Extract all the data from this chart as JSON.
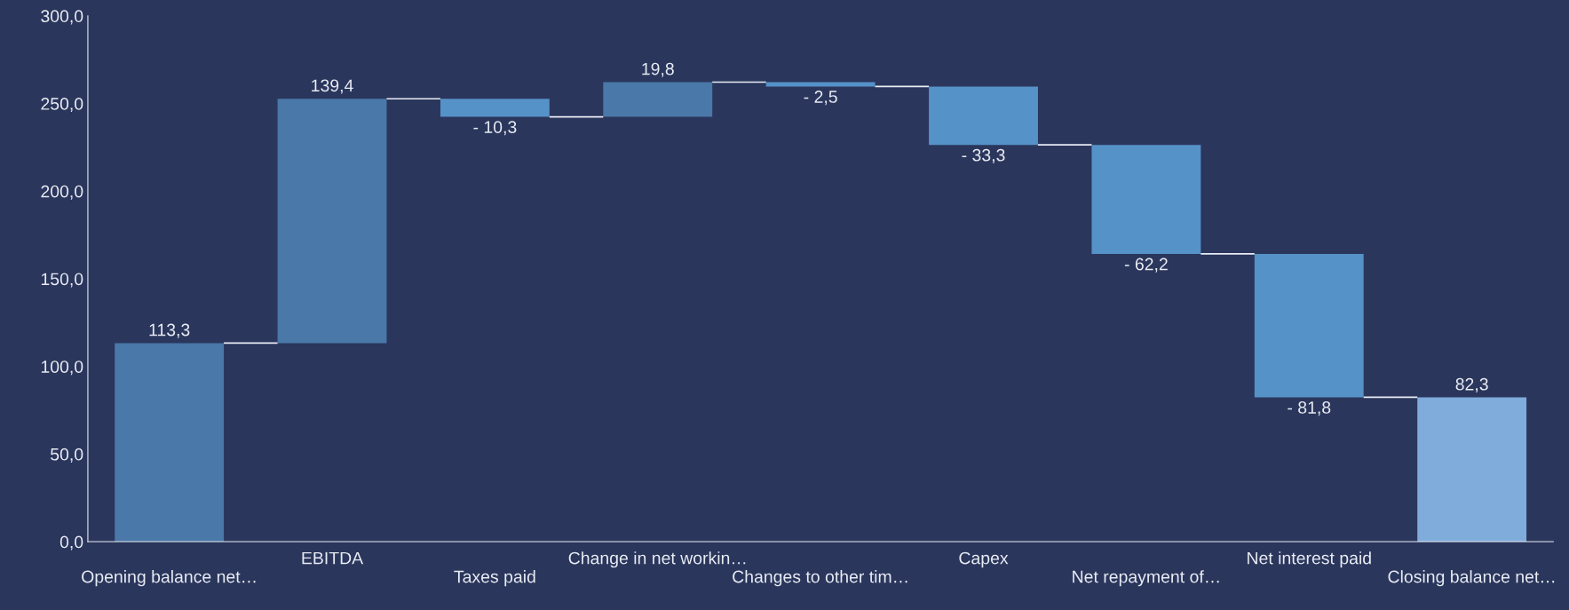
{
  "chart_data": {
    "type": "bar",
    "categories": [
      "Opening balance net…",
      "EBITDA",
      "Taxes paid",
      "Change in net workin…",
      "Changes to other tim…",
      "Capex",
      "Net repayment of…",
      "Net interest paid",
      "Closing balance net…"
    ],
    "values": [
      113.3,
      139.4,
      -10.3,
      19.8,
      -2.5,
      -33.3,
      -62.2,
      -81.8,
      82.3
    ],
    "base": [
      0,
      113.3,
      252.7,
      242.4,
      262.2,
      259.7,
      226.4,
      164.2,
      0
    ],
    "colors": [
      "#4a78a8",
      "#4a78a8",
      "#5592c8",
      "#4a78a8",
      "#5592c8",
      "#5592c8",
      "#5592c8",
      "#5592c8",
      "#80acdb"
    ],
    "value_labels": [
      "113,3",
      "139,4",
      "- 10,3",
      "19,8",
      "- 2,5",
      "- 33,3",
      "- 62,2",
      "- 81,8",
      "82,3"
    ],
    "ylim": [
      0,
      300
    ],
    "yticks": [
      {
        "value": 0,
        "label": "0,0"
      },
      {
        "value": 50,
        "label": "50,0"
      },
      {
        "value": 100,
        "label": "100,0"
      },
      {
        "value": 150,
        "label": "150,0"
      },
      {
        "value": 200,
        "label": "200,0"
      },
      {
        "value": 250,
        "label": "250,0"
      },
      {
        "value": 300,
        "label": "300,0"
      }
    ],
    "grid": false,
    "legend": false
  }
}
